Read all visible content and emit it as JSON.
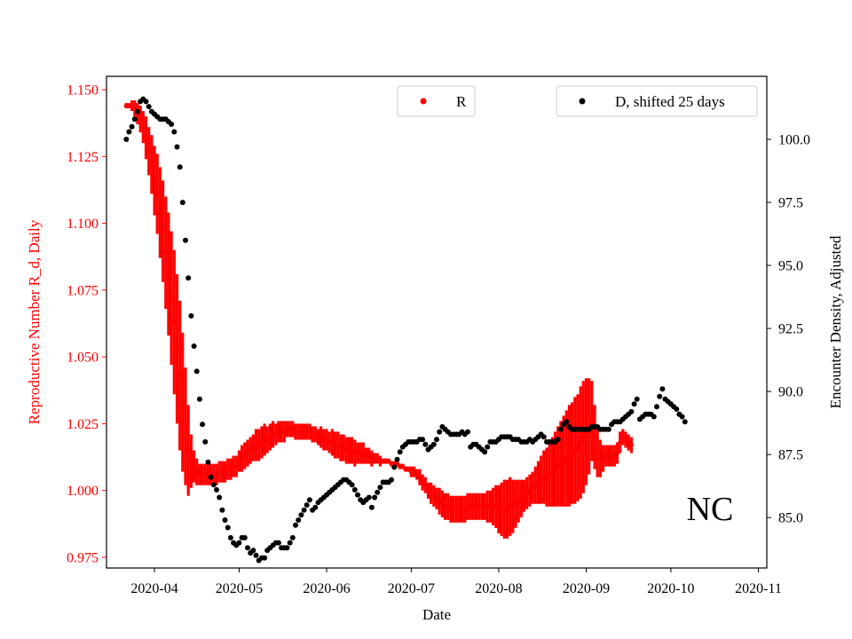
{
  "chart_data": {
    "type": "scatter",
    "title": "",
    "annotation": "NC",
    "xlabel": "Date",
    "ylabel_left": "Reproductive Number R_d, Daily",
    "ylabel_right": "Encounter Density, Adjusted",
    "x_ticks": [
      "2020-04",
      "2020-05",
      "2020-06",
      "2020-07",
      "2020-08",
      "2020-09",
      "2020-10",
      "2020-11"
    ],
    "xlim": [
      "2020-03-15",
      "2020-11-04"
    ],
    "ylim_left": [
      0.971,
      1.155
    ],
    "ylim_right": [
      83.0,
      102.5
    ],
    "y_ticks_left": [
      0.975,
      1.0,
      1.025,
      1.05,
      1.075,
      1.1,
      1.125,
      1.15
    ],
    "y_ticks_left_labels": [
      "0.975",
      "1.000",
      "1.025",
      "1.050",
      "1.075",
      "1.100",
      "1.125",
      "1.150"
    ],
    "y_ticks_right": [
      85.0,
      87.5,
      90.0,
      92.5,
      95.0,
      97.5,
      100.0
    ],
    "y_ticks_right_labels": [
      "85.0",
      "87.5",
      "90.0",
      "92.5",
      "95.0",
      "97.5",
      "100.0"
    ],
    "colors": {
      "R": "#ff0000",
      "D": "#000000",
      "left_axis": "#ff0000",
      "right_axis": "#000000"
    },
    "legend_R": {
      "label": "R",
      "placement": "upper-center"
    },
    "legend_D": {
      "label": "D, shifted 25 days",
      "placement": "upper-right"
    },
    "series_R": {
      "name": "R",
      "axis": "left",
      "x_start": "2020-03-22",
      "step_days": 1,
      "center": [
        1.144,
        1.144,
        1.144,
        1.143,
        1.141,
        1.139,
        1.136,
        1.132,
        1.127,
        1.122,
        1.116,
        1.111,
        1.104,
        1.097,
        1.089,
        1.081,
        1.072,
        1.063,
        1.053,
        1.043,
        1.033,
        1.024,
        1.015,
        1.011,
        1.009,
        1.007,
        1.006,
        1.006,
        1.006,
        1.006,
        1.006,
        1.006,
        1.006,
        1.007,
        1.007,
        1.007,
        1.008,
        1.008,
        1.009,
        1.009,
        1.011,
        1.012,
        1.013,
        1.014,
        1.015,
        1.016,
        1.017,
        1.017,
        1.018,
        1.019,
        1.019,
        1.02,
        1.021,
        1.021,
        1.022,
        1.022,
        1.022,
        1.023,
        1.023,
        1.023,
        1.022,
        1.022,
        1.022,
        1.022,
        1.022,
        1.022,
        1.021,
        1.021,
        1.02,
        1.02,
        1.019,
        1.019,
        1.018,
        1.018,
        1.017,
        1.017,
        1.016,
        1.016,
        1.015,
        1.015,
        1.015,
        1.014,
        1.014,
        1.014,
        1.014,
        1.013,
        1.013,
        1.012,
        1.012,
        1.012,
        1.011,
        1.011,
        1.011,
        1.011,
        1.01,
        1.01,
        1.01,
        1.009,
        1.009,
        1.008,
        1.008,
        1.007,
        1.007,
        1.006,
        1.005,
        1.003,
        1.002,
        1.0,
        0.999,
        0.998,
        0.997,
        0.996,
        0.995,
        0.994,
        0.994,
        0.993,
        0.993,
        0.993,
        0.993,
        0.993,
        0.993,
        0.994,
        0.994,
        0.994,
        0.994,
        0.994,
        0.994,
        0.994,
        0.994,
        0.994,
        0.994,
        0.994,
        0.993,
        0.993,
        0.993,
        0.993,
        0.994,
        0.994,
        0.995,
        0.996,
        0.997,
        0.998,
        0.999,
        1.0,
        1.001,
        1.002,
        1.003,
        1.004,
        1.005,
        1.005,
        1.006,
        1.007,
        1.008,
        1.009,
        1.01,
        1.011,
        1.012,
        1.013,
        1.014,
        1.015,
        1.016,
        1.018,
        1.02,
        1.022,
        1.024,
        1.026,
        1.02,
        1.014,
        1.012,
        1.012,
        1.013,
        1.013,
        1.013,
        1.013,
        1.014,
        1.018,
        1.02,
        1.019,
        1.018,
        1.017
      ],
      "band": [
        0.001,
        0.001,
        0.002,
        0.003,
        0.004,
        0.005,
        0.006,
        0.008,
        0.009,
        0.011,
        0.013,
        0.015,
        0.017,
        0.019,
        0.021,
        0.023,
        0.025,
        0.027,
        0.028,
        0.028,
        0.026,
        0.022,
        0.017,
        0.01,
        0.006,
        0.005,
        0.004,
        0.004,
        0.004,
        0.004,
        0.004,
        0.004,
        0.004,
        0.004,
        0.004,
        0.004,
        0.004,
        0.004,
        0.004,
        0.004,
        0.004,
        0.005,
        0.005,
        0.005,
        0.005,
        0.005,
        0.006,
        0.006,
        0.006,
        0.006,
        0.005,
        0.005,
        0.005,
        0.004,
        0.004,
        0.004,
        0.004,
        0.003,
        0.003,
        0.003,
        0.003,
        0.003,
        0.003,
        0.003,
        0.003,
        0.003,
        0.003,
        0.003,
        0.003,
        0.004,
        0.004,
        0.004,
        0.004,
        0.005,
        0.005,
        0.005,
        0.005,
        0.005,
        0.005,
        0.005,
        0.005,
        0.005,
        0.004,
        0.004,
        0.004,
        0.003,
        0.003,
        0.003,
        0.002,
        0.002,
        0.002,
        0.001,
        0.001,
        0.001,
        0.001,
        0.001,
        0.001,
        0.001,
        0.001,
        0.001,
        0.001,
        0.002,
        0.002,
        0.002,
        0.003,
        0.003,
        0.003,
        0.003,
        0.004,
        0.004,
        0.004,
        0.005,
        0.005,
        0.005,
        0.005,
        0.005,
        0.005,
        0.005,
        0.005,
        0.005,
        0.005,
        0.005,
        0.005,
        0.005,
        0.005,
        0.005,
        0.005,
        0.005,
        0.006,
        0.006,
        0.007,
        0.008,
        0.009,
        0.01,
        0.011,
        0.011,
        0.011,
        0.01,
        0.009,
        0.008,
        0.007,
        0.006,
        0.006,
        0.006,
        0.006,
        0.007,
        0.008,
        0.009,
        0.01,
        0.011,
        0.012,
        0.013,
        0.014,
        0.015,
        0.016,
        0.017,
        0.018,
        0.019,
        0.019,
        0.02,
        0.02,
        0.021,
        0.021,
        0.02,
        0.018,
        0.015,
        0.012,
        0.009,
        0.007,
        0.005,
        0.004,
        0.004,
        0.004,
        0.004,
        0.004,
        0.004,
        0.003,
        0.003,
        0.003,
        0.003,
        0.003
      ]
    },
    "series_D": {
      "name": "D, shifted 25 days",
      "axis": "right",
      "points": [
        [
          "2020-03-22",
          100.0
        ],
        [
          "2020-03-23",
          100.3
        ],
        [
          "2020-03-24",
          100.5
        ],
        [
          "2020-03-25",
          100.8
        ],
        [
          "2020-03-26",
          101.1
        ],
        [
          "2020-03-27",
          101.5
        ],
        [
          "2020-03-28",
          101.6
        ],
        [
          "2020-03-29",
          101.5
        ],
        [
          "2020-03-30",
          101.3
        ],
        [
          "2020-03-31",
          101.1
        ],
        [
          "2020-04-01",
          101.0
        ],
        [
          "2020-04-02",
          100.9
        ],
        [
          "2020-04-03",
          100.8
        ],
        [
          "2020-04-04",
          100.8
        ],
        [
          "2020-04-05",
          100.8
        ],
        [
          "2020-04-06",
          100.7
        ],
        [
          "2020-04-07",
          100.6
        ],
        [
          "2020-04-08",
          100.3
        ],
        [
          "2020-04-09",
          99.7
        ],
        [
          "2020-04-10",
          98.9
        ],
        [
          "2020-04-11",
          97.5
        ],
        [
          "2020-04-12",
          96.0
        ],
        [
          "2020-04-13",
          94.5
        ],
        [
          "2020-04-14",
          93.0
        ],
        [
          "2020-04-15",
          91.8
        ],
        [
          "2020-04-16",
          90.8
        ],
        [
          "2020-04-17",
          89.7
        ],
        [
          "2020-04-18",
          88.7
        ],
        [
          "2020-04-19",
          88.0
        ],
        [
          "2020-04-20",
          87.2
        ],
        [
          "2020-04-21",
          86.6
        ],
        [
          "2020-04-22",
          86.3
        ],
        [
          "2020-04-23",
          86.1
        ],
        [
          "2020-04-24",
          85.8
        ],
        [
          "2020-04-25",
          85.3
        ],
        [
          "2020-04-26",
          84.9
        ],
        [
          "2020-04-27",
          84.6
        ],
        [
          "2020-04-28",
          84.2
        ],
        [
          "2020-04-29",
          84.0
        ],
        [
          "2020-04-30",
          83.9
        ],
        [
          "2020-05-01",
          84.0
        ],
        [
          "2020-05-02",
          84.2
        ],
        [
          "2020-05-03",
          84.2
        ],
        [
          "2020-05-04",
          83.8
        ],
        [
          "2020-05-05",
          83.6
        ],
        [
          "2020-05-06",
          83.7
        ],
        [
          "2020-05-07",
          83.5
        ],
        [
          "2020-05-08",
          83.3
        ],
        [
          "2020-05-09",
          83.4
        ],
        [
          "2020-05-10",
          83.4
        ],
        [
          "2020-05-11",
          83.7
        ],
        [
          "2020-05-12",
          83.8
        ],
        [
          "2020-05-13",
          83.9
        ],
        [
          "2020-05-14",
          84.0
        ],
        [
          "2020-05-15",
          84.0
        ],
        [
          "2020-05-16",
          83.8
        ],
        [
          "2020-05-17",
          83.8
        ],
        [
          "2020-05-18",
          83.8
        ],
        [
          "2020-05-19",
          84.0
        ],
        [
          "2020-05-20",
          84.2
        ],
        [
          "2020-05-21",
          84.7
        ],
        [
          "2020-05-22",
          84.9
        ],
        [
          "2020-05-23",
          85.1
        ],
        [
          "2020-05-24",
          85.3
        ],
        [
          "2020-05-25",
          85.5
        ],
        [
          "2020-05-26",
          85.7
        ],
        [
          "2020-05-27",
          85.3
        ],
        [
          "2020-05-28",
          85.4
        ],
        [
          "2020-05-29",
          85.6
        ],
        [
          "2020-05-30",
          85.7
        ],
        [
          "2020-05-31",
          85.8
        ],
        [
          "2020-06-01",
          85.9
        ],
        [
          "2020-06-02",
          86.0
        ],
        [
          "2020-06-03",
          86.1
        ],
        [
          "2020-06-04",
          86.2
        ],
        [
          "2020-06-05",
          86.3
        ],
        [
          "2020-06-06",
          86.4
        ],
        [
          "2020-06-07",
          86.5
        ],
        [
          "2020-06-08",
          86.5
        ],
        [
          "2020-06-09",
          86.4
        ],
        [
          "2020-06-10",
          86.3
        ],
        [
          "2020-06-11",
          86.1
        ],
        [
          "2020-06-12",
          85.9
        ],
        [
          "2020-06-13",
          85.7
        ],
        [
          "2020-06-14",
          85.6
        ],
        [
          "2020-06-15",
          85.7
        ],
        [
          "2020-06-16",
          85.8
        ],
        [
          "2020-06-17",
          85.4
        ],
        [
          "2020-06-18",
          85.8
        ],
        [
          "2020-06-19",
          86.0
        ],
        [
          "2020-06-20",
          86.2
        ],
        [
          "2020-06-21",
          86.4
        ],
        [
          "2020-06-22",
          86.4
        ],
        [
          "2020-06-23",
          86.4
        ],
        [
          "2020-06-24",
          86.5
        ],
        [
          "2020-06-25",
          87.0
        ],
        [
          "2020-06-26",
          87.3
        ],
        [
          "2020-06-27",
          87.6
        ],
        [
          "2020-06-28",
          87.8
        ],
        [
          "2020-06-29",
          87.9
        ],
        [
          "2020-06-30",
          88.0
        ],
        [
          "2020-07-01",
          88.0
        ],
        [
          "2020-07-02",
          88.0
        ],
        [
          "2020-07-03",
          88.0
        ],
        [
          "2020-07-04",
          88.1
        ],
        [
          "2020-07-05",
          88.1
        ],
        [
          "2020-07-06",
          87.9
        ],
        [
          "2020-07-07",
          87.7
        ],
        [
          "2020-07-08",
          87.8
        ],
        [
          "2020-07-09",
          87.9
        ],
        [
          "2020-07-10",
          88.1
        ],
        [
          "2020-07-11",
          88.4
        ],
        [
          "2020-07-12",
          88.6
        ],
        [
          "2020-07-13",
          88.5
        ],
        [
          "2020-07-14",
          88.4
        ],
        [
          "2020-07-15",
          88.3
        ],
        [
          "2020-07-16",
          88.3
        ],
        [
          "2020-07-17",
          88.3
        ],
        [
          "2020-07-18",
          88.3
        ],
        [
          "2020-07-19",
          88.4
        ],
        [
          "2020-07-20",
          88.3
        ],
        [
          "2020-07-21",
          88.4
        ],
        [
          "2020-07-22",
          87.8
        ],
        [
          "2020-07-23",
          87.9
        ],
        [
          "2020-07-24",
          87.9
        ],
        [
          "2020-07-25",
          87.8
        ],
        [
          "2020-07-26",
          87.7
        ],
        [
          "2020-07-27",
          87.6
        ],
        [
          "2020-07-28",
          87.8
        ],
        [
          "2020-07-29",
          88.0
        ],
        [
          "2020-07-30",
          88.0
        ],
        [
          "2020-07-31",
          88.0
        ],
        [
          "2020-08-01",
          88.1
        ],
        [
          "2020-08-02",
          88.2
        ],
        [
          "2020-08-03",
          88.2
        ],
        [
          "2020-08-04",
          88.2
        ],
        [
          "2020-08-05",
          88.2
        ],
        [
          "2020-08-06",
          88.1
        ],
        [
          "2020-08-07",
          88.1
        ],
        [
          "2020-08-08",
          88.1
        ],
        [
          "2020-08-09",
          88.0
        ],
        [
          "2020-08-10",
          88.0
        ],
        [
          "2020-08-11",
          88.0
        ],
        [
          "2020-08-12",
          88.1
        ],
        [
          "2020-08-13",
          88.0
        ],
        [
          "2020-08-14",
          88.1
        ],
        [
          "2020-08-15",
          88.2
        ],
        [
          "2020-08-16",
          88.3
        ],
        [
          "2020-08-17",
          88.2
        ],
        [
          "2020-08-18",
          88.0
        ],
        [
          "2020-08-19",
          88.0
        ],
        [
          "2020-08-20",
          88.0
        ],
        [
          "2020-08-21",
          88.0
        ],
        [
          "2020-08-22",
          88.1
        ],
        [
          "2020-08-23",
          88.5
        ],
        [
          "2020-08-24",
          88.7
        ],
        [
          "2020-08-25",
          88.8
        ],
        [
          "2020-08-26",
          88.6
        ],
        [
          "2020-08-27",
          88.5
        ],
        [
          "2020-08-28",
          88.5
        ],
        [
          "2020-08-29",
          88.5
        ],
        [
          "2020-08-30",
          88.5
        ],
        [
          "2020-08-31",
          88.5
        ],
        [
          "2020-09-01",
          88.5
        ],
        [
          "2020-09-02",
          88.5
        ],
        [
          "2020-09-03",
          88.6
        ],
        [
          "2020-09-04",
          88.6
        ],
        [
          "2020-09-05",
          88.6
        ],
        [
          "2020-09-06",
          88.5
        ],
        [
          "2020-09-07",
          88.5
        ],
        [
          "2020-09-08",
          88.5
        ],
        [
          "2020-09-09",
          88.5
        ],
        [
          "2020-09-10",
          88.7
        ],
        [
          "2020-09-11",
          88.8
        ],
        [
          "2020-09-12",
          88.8
        ],
        [
          "2020-09-13",
          88.8
        ],
        [
          "2020-09-14",
          88.9
        ],
        [
          "2020-09-15",
          89.0
        ],
        [
          "2020-09-16",
          89.1
        ],
        [
          "2020-09-17",
          89.2
        ],
        [
          "2020-09-18",
          89.5
        ],
        [
          "2020-09-19",
          89.7
        ],
        [
          "2020-09-20",
          88.9
        ],
        [
          "2020-09-21",
          89.0
        ],
        [
          "2020-09-22",
          89.1
        ],
        [
          "2020-09-23",
          89.1
        ],
        [
          "2020-09-24",
          89.1
        ],
        [
          "2020-09-25",
          89.0
        ],
        [
          "2020-09-26",
          89.4
        ],
        [
          "2020-09-27",
          89.8
        ],
        [
          "2020-09-28",
          90.1
        ],
        [
          "2020-09-29",
          89.7
        ],
        [
          "2020-09-30",
          89.6
        ],
        [
          "2020-10-01",
          89.5
        ],
        [
          "2020-10-02",
          89.4
        ],
        [
          "2020-10-03",
          89.3
        ],
        [
          "2020-10-04",
          89.1
        ],
        [
          "2020-10-05",
          89.0
        ],
        [
          "2020-10-06",
          88.8
        ]
      ]
    }
  }
}
